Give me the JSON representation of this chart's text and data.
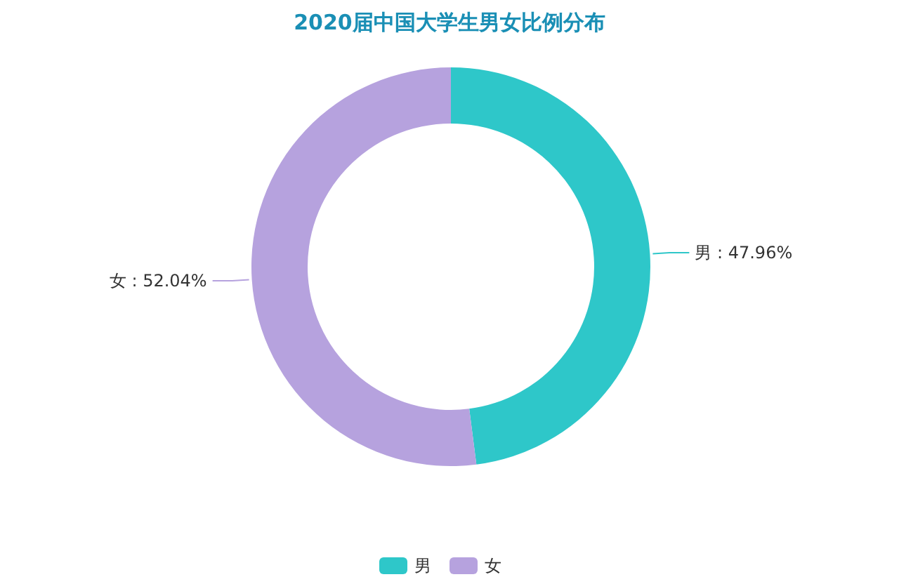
{
  "chart_data": {
    "type": "donut",
    "title": "2020届中国大学生男女比例分布",
    "categories": [
      "男",
      "女"
    ],
    "values": [
      47.96,
      52.04
    ],
    "colors": [
      "#2ec7c9",
      "#b6a2de"
    ],
    "value_labels": [
      "男 : 47.96%",
      "女 : 52.04%"
    ],
    "legend": "bottom"
  }
}
